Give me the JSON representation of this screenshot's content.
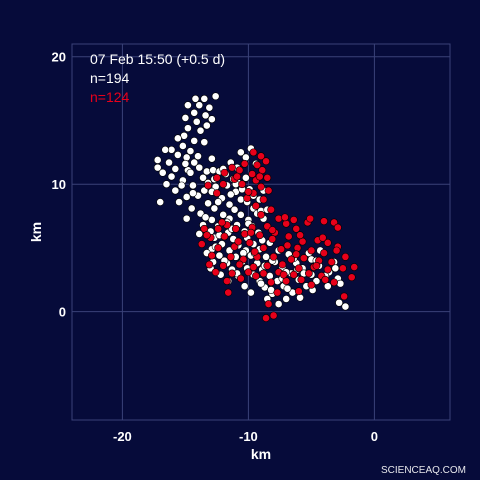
{
  "header": {
    "timestamp": "07 Feb 15:50 (+0.5 d)",
    "count_white": "n=194",
    "count_red": "n=124"
  },
  "credit": "SCIENCEAQ.COM",
  "colors": {
    "background": "#060b3a",
    "grid": "#3a4278",
    "white_points": "#ffffff",
    "red_points": "#e8001a"
  },
  "chart_data": {
    "type": "scatter",
    "xlabel": "km",
    "ylabel": "km",
    "xlim": [
      -24,
      6
    ],
    "ylim": [
      -8.5,
      21
    ],
    "xticks": [
      -20,
      -10,
      0
    ],
    "yticks": [
      0,
      10,
      20
    ],
    "x_tick_labels": [
      "-20",
      "-10",
      "0"
    ],
    "y_tick_labels": [
      "0",
      "10",
      "20"
    ],
    "grid": true,
    "series": [
      {
        "color": "#ffffff",
        "points": [
          [
            -14.2,
            16.7
          ],
          [
            -13.5,
            16.7
          ],
          [
            -12.6,
            16.9
          ],
          [
            -14.8,
            16.2
          ],
          [
            -13.9,
            16.2
          ],
          [
            -13.1,
            16.0
          ],
          [
            -14.3,
            15.6
          ],
          [
            -13.4,
            15.4
          ],
          [
            -15.0,
            15.2
          ],
          [
            -12.9,
            15.1
          ],
          [
            -14.1,
            14.9
          ],
          [
            -13.3,
            14.6
          ],
          [
            -14.8,
            14.4
          ],
          [
            -13.8,
            14.2
          ],
          [
            -15.1,
            13.8
          ],
          [
            -14.3,
            13.4
          ],
          [
            -13.5,
            13.3
          ],
          [
            -15.2,
            13.0
          ],
          [
            -14.6,
            12.6
          ],
          [
            -16.1,
            12.7
          ],
          [
            -16.6,
            12.7
          ],
          [
            -15.6,
            12.3
          ],
          [
            -14.9,
            12.1
          ],
          [
            -17.2,
            11.9
          ],
          [
            -16.3,
            11.7
          ],
          [
            -14.3,
            11.7
          ],
          [
            -17.2,
            11.3
          ],
          [
            -15.8,
            11.2
          ],
          [
            -14.8,
            11.1
          ],
          [
            -13.3,
            11.0
          ],
          [
            -12.8,
            11.1
          ],
          [
            -12.3,
            11.0
          ],
          [
            -11.8,
            10.8
          ],
          [
            -16.1,
            10.6
          ],
          [
            -15.2,
            10.3
          ],
          [
            -13.6,
            10.5
          ],
          [
            -12.7,
            10.4
          ],
          [
            -11.2,
            10.4
          ],
          [
            -16.5,
            10.0
          ],
          [
            -14.4,
            9.9
          ],
          [
            -12.6,
            9.8
          ],
          [
            -11.7,
            9.9
          ],
          [
            -10.8,
            10.1
          ],
          [
            -10.2,
            10.5
          ],
          [
            -15.8,
            9.5
          ],
          [
            -13.5,
            9.5
          ],
          [
            -12.9,
            9.4
          ],
          [
            -11.0,
            9.4
          ],
          [
            -9.9,
            9.6
          ],
          [
            -14.9,
            9.0
          ],
          [
            -14.0,
            9.1
          ],
          [
            -12.1,
            8.9
          ],
          [
            -10.6,
            8.8
          ],
          [
            -9.6,
            9.1
          ],
          [
            -17.0,
            8.6
          ],
          [
            -15.5,
            8.6
          ],
          [
            -13.2,
            8.5
          ],
          [
            -11.5,
            8.4
          ],
          [
            -10.1,
            8.6
          ],
          [
            -9.1,
            8.8
          ],
          [
            -14.5,
            8.1
          ],
          [
            -12.7,
            8.1
          ],
          [
            -11.1,
            8.0
          ],
          [
            -9.6,
            8.1
          ],
          [
            -13.8,
            7.7
          ],
          [
            -12.0,
            7.6
          ],
          [
            -10.6,
            7.6
          ],
          [
            -9.3,
            7.7
          ],
          [
            -14.9,
            7.3
          ],
          [
            -12.9,
            7.2
          ],
          [
            -11.5,
            7.3
          ],
          [
            -10.0,
            7.2
          ],
          [
            -8.8,
            7.3
          ],
          [
            -13.6,
            6.8
          ],
          [
            -12.4,
            6.7
          ],
          [
            -10.9,
            6.8
          ],
          [
            -9.7,
            6.7
          ],
          [
            -13.0,
            6.3
          ],
          [
            -11.6,
            6.2
          ],
          [
            -10.3,
            6.3
          ],
          [
            -9.2,
            6.2
          ],
          [
            -12.7,
            5.8
          ],
          [
            -11.2,
            5.7
          ],
          [
            -10.1,
            5.8
          ],
          [
            -8.9,
            5.6
          ],
          [
            -12.1,
            5.3
          ],
          [
            -10.8,
            5.2
          ],
          [
            -9.6,
            5.3
          ],
          [
            -8.3,
            5.4
          ],
          [
            -12.9,
            4.9
          ],
          [
            -11.5,
            4.8
          ],
          [
            -10.2,
            4.8
          ],
          [
            -9.1,
            4.9
          ],
          [
            -7.6,
            4.8
          ],
          [
            -12.3,
            4.4
          ],
          [
            -11.0,
            4.3
          ],
          [
            -9.8,
            4.4
          ],
          [
            -8.6,
            4.3
          ],
          [
            -6.8,
            4.5
          ],
          [
            -5.2,
            4.6
          ],
          [
            -4.3,
            4.8
          ],
          [
            -12.8,
            3.9
          ],
          [
            -11.7,
            3.8
          ],
          [
            -10.5,
            3.9
          ],
          [
            -9.3,
            3.8
          ],
          [
            -7.9,
            3.9
          ],
          [
            -6.2,
            3.8
          ],
          [
            -5.0,
            4.1
          ],
          [
            -13.0,
            3.4
          ],
          [
            -11.3,
            3.3
          ],
          [
            -10.1,
            3.4
          ],
          [
            -8.9,
            3.3
          ],
          [
            -7.3,
            3.5
          ],
          [
            -5.7,
            3.4
          ],
          [
            -4.4,
            3.6
          ],
          [
            -3.2,
            3.9
          ],
          [
            -12.2,
            2.9
          ],
          [
            -10.8,
            2.8
          ],
          [
            -9.6,
            2.9
          ],
          [
            -8.3,
            2.8
          ],
          [
            -6.6,
            3.0
          ],
          [
            -5.0,
            2.9
          ],
          [
            -3.6,
            3.1
          ],
          [
            -11.6,
            2.4
          ],
          [
            -9.1,
            2.4
          ],
          [
            -7.7,
            2.4
          ],
          [
            -6.0,
            2.5
          ],
          [
            -4.6,
            2.4
          ],
          [
            -2.9,
            2.6
          ],
          [
            -10.3,
            2.0
          ],
          [
            -8.7,
            1.9
          ],
          [
            -7.2,
            2.0
          ],
          [
            -5.4,
            2.0
          ],
          [
            -3.7,
            2.0
          ],
          [
            -9.8,
            1.5
          ],
          [
            -8.1,
            1.4
          ],
          [
            -6.5,
            1.5
          ],
          [
            -8.5,
            1.0
          ],
          [
            -7.0,
            1.0
          ],
          [
            -5.9,
            1.1
          ],
          [
            -7.6,
            0.6
          ],
          [
            -2.8,
            0.7
          ],
          [
            -2.3,
            0.4
          ],
          [
            -10.6,
            12.5
          ],
          [
            -9.8,
            12.8
          ],
          [
            -10.2,
            12.1
          ],
          [
            -11.4,
            11.7
          ],
          [
            -10.9,
            11.3
          ],
          [
            -9.4,
            11.6
          ],
          [
            -13.9,
            11.3
          ],
          [
            -12.0,
            11.2
          ],
          [
            -13.2,
            10.1
          ],
          [
            -15.3,
            9.9
          ],
          [
            -11.4,
            9.2
          ],
          [
            -8.8,
            9.5
          ],
          [
            -12.4,
            8.6
          ],
          [
            -13.9,
            6.1
          ],
          [
            -12.3,
            6.0
          ],
          [
            -11.9,
            4.0
          ],
          [
            -10.9,
            3.0
          ],
          [
            -9.0,
            2.2
          ],
          [
            -6.9,
            1.8
          ],
          [
            -4.9,
            1.7
          ],
          [
            -10.0,
            6.9
          ],
          [
            -11.3,
            6.5
          ],
          [
            -9.5,
            4.6
          ],
          [
            -8.1,
            4.0
          ],
          [
            -6.4,
            4.2
          ],
          [
            -5.6,
            3.0
          ],
          [
            -3.9,
            2.8
          ],
          [
            -7.0,
            3.1
          ],
          [
            -8.7,
            3.6
          ],
          [
            -13.4,
            7.4
          ],
          [
            -11.7,
            7.0
          ],
          [
            -9.0,
            7.9
          ],
          [
            -14.0,
            12.2
          ],
          [
            -15.6,
            13.6
          ],
          [
            -14.6,
            10.9
          ],
          [
            -16.8,
            10.9
          ],
          [
            -12.9,
            12.0
          ],
          [
            -11.0,
            10.0
          ],
          [
            -10.5,
            9.6
          ],
          [
            -8.5,
            8.0
          ],
          [
            -12.6,
            5.1
          ],
          [
            -13.3,
            4.6
          ],
          [
            -14.4,
            9.3
          ],
          [
            -15.0,
            11.6
          ],
          [
            -10.4,
            4.6
          ],
          [
            -7.3,
            2.6
          ],
          [
            -6.1,
            3.3
          ],
          [
            -4.6,
            4.0
          ],
          [
            -3.1,
            3.4
          ],
          [
            -2.7,
            2.2
          ],
          [
            -8.2,
            1.7
          ]
        ]
      },
      {
        "color": "#e8001a",
        "points": [
          [
            -9.6,
            12.5
          ],
          [
            -9.0,
            12.2
          ],
          [
            -8.6,
            11.8
          ],
          [
            -10.3,
            11.6
          ],
          [
            -9.3,
            11.5
          ],
          [
            -11.3,
            11.3
          ],
          [
            -10.7,
            11.1
          ],
          [
            -8.9,
            11.1
          ],
          [
            -11.9,
            10.9
          ],
          [
            -9.7,
            10.8
          ],
          [
            -8.5,
            10.5
          ],
          [
            -12.5,
            10.5
          ],
          [
            -11.1,
            10.4
          ],
          [
            -9.4,
            10.3
          ],
          [
            -12.0,
            10.0
          ],
          [
            -10.5,
            10.0
          ],
          [
            -9.0,
            9.8
          ],
          [
            -13.2,
            9.9
          ],
          [
            -8.4,
            9.5
          ],
          [
            -9.6,
            9.3
          ],
          [
            -10.1,
            8.9
          ],
          [
            -8.8,
            8.8
          ],
          [
            -9.4,
            8.3
          ],
          [
            -8.2,
            8.0
          ],
          [
            -9.0,
            7.6
          ],
          [
            -7.6,
            7.3
          ],
          [
            -6.4,
            7.2
          ],
          [
            -5.3,
            7.0
          ],
          [
            -5.1,
            7.3
          ],
          [
            -3.2,
            7.0
          ],
          [
            -2.9,
            6.6
          ],
          [
            -7.0,
            6.9
          ],
          [
            -6.2,
            6.5
          ],
          [
            -8.5,
            6.7
          ],
          [
            -9.7,
            6.6
          ],
          [
            -11.0,
            6.5
          ],
          [
            -12.4,
            6.5
          ],
          [
            -13.5,
            6.5
          ],
          [
            -13.0,
            5.8
          ],
          [
            -11.9,
            5.9
          ],
          [
            -10.3,
            6.1
          ],
          [
            -9.1,
            6.0
          ],
          [
            -7.9,
            6.2
          ],
          [
            -6.8,
            5.9
          ],
          [
            -5.7,
            5.5
          ],
          [
            -4.5,
            5.6
          ],
          [
            -3.7,
            5.4
          ],
          [
            -2.9,
            5.1
          ],
          [
            -13.7,
            5.3
          ],
          [
            -12.4,
            5.0
          ],
          [
            -11.1,
            5.1
          ],
          [
            -9.9,
            5.4
          ],
          [
            -8.8,
            5.0
          ],
          [
            -7.4,
            4.9
          ],
          [
            -6.1,
            5.0
          ],
          [
            -5.0,
            4.8
          ],
          [
            -4.0,
            4.6
          ],
          [
            -2.3,
            4.3
          ],
          [
            -12.9,
            4.4
          ],
          [
            -11.4,
            4.3
          ],
          [
            -10.4,
            4.1
          ],
          [
            -9.3,
            4.3
          ],
          [
            -8.0,
            4.3
          ],
          [
            -6.6,
            4.1
          ],
          [
            -5.6,
            4.2
          ],
          [
            -4.4,
            4.0
          ],
          [
            -3.4,
            3.9
          ],
          [
            -1.6,
            3.5
          ],
          [
            -13.1,
            3.7
          ],
          [
            -12.0,
            3.6
          ],
          [
            -10.7,
            3.7
          ],
          [
            -9.6,
            3.5
          ],
          [
            -8.5,
            3.6
          ],
          [
            -7.3,
            3.7
          ],
          [
            -6.0,
            3.4
          ],
          [
            -4.8,
            3.5
          ],
          [
            -3.7,
            3.3
          ],
          [
            -2.5,
            3.4
          ],
          [
            -12.6,
            3.1
          ],
          [
            -11.3,
            3.0
          ],
          [
            -10.0,
            3.1
          ],
          [
            -8.8,
            3.0
          ],
          [
            -7.6,
            3.1
          ],
          [
            -6.4,
            2.9
          ],
          [
            -5.2,
            3.0
          ],
          [
            -4.2,
            2.8
          ],
          [
            -1.8,
            2.7
          ],
          [
            -11.7,
            2.4
          ],
          [
            -8.2,
            2.3
          ],
          [
            -7.0,
            2.4
          ],
          [
            -5.8,
            2.5
          ],
          [
            -3.2,
            2.3
          ],
          [
            -11.6,
            1.5
          ],
          [
            -7.7,
            1.5
          ],
          [
            -6.0,
            1.6
          ],
          [
            -2.4,
            1.2
          ],
          [
            -8.4,
            0.6
          ],
          [
            -8.0,
            -0.3
          ],
          [
            -8.6,
            -0.5
          ],
          [
            -9.8,
            6.2
          ],
          [
            -11.7,
            6.8
          ],
          [
            -7.1,
            7.4
          ],
          [
            -4.0,
            7.1
          ],
          [
            -10.8,
            5.5
          ],
          [
            -12.1,
            7.0
          ],
          [
            -13.3,
            6.0
          ],
          [
            -6.9,
            5.2
          ],
          [
            -5.9,
            6.0
          ],
          [
            -4.1,
            5.8
          ],
          [
            -8.1,
            5.7
          ],
          [
            -9.5,
            4.7
          ],
          [
            -6.2,
            4.5
          ],
          [
            -3.0,
            4.8
          ],
          [
            -10.6,
            2.6
          ],
          [
            -5.0,
            2.1
          ],
          [
            -9.4,
            2.8
          ],
          [
            -7.2,
            2.9
          ],
          [
            -4.6,
            3.6
          ],
          [
            -3.9,
            2.5
          ],
          [
            -12.5,
            9.3
          ],
          [
            -10.0,
            9.4
          ],
          [
            -9.1,
            10.6
          ],
          [
            -10.9,
            10.6
          ],
          [
            -8.1,
            6.4
          ]
        ]
      }
    ]
  }
}
